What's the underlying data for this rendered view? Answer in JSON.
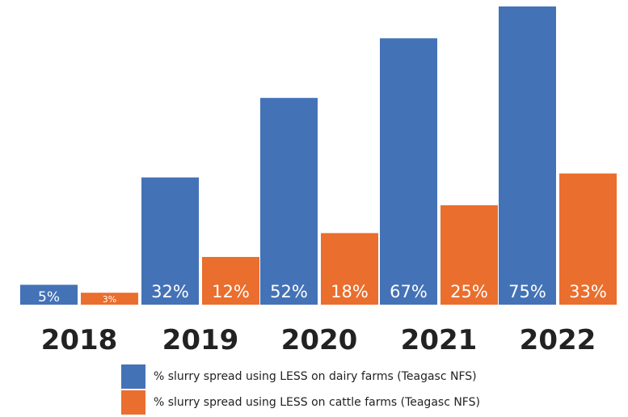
{
  "chart_data": {
    "type": "bar",
    "categories": [
      "2018",
      "2019",
      "2020",
      "2021",
      "2022"
    ],
    "series": [
      {
        "name": "% slurry spread using LESS on dairy farms (Teagasc NFS)",
        "values": [
          5,
          32,
          52,
          67,
          75
        ],
        "labels": [
          "5%",
          "32%",
          "52%",
          "67%",
          "75%"
        ]
      },
      {
        "name": "% slurry spread using LESS on cattle farms (Teagasc NFS)",
        "values": [
          3,
          12,
          18,
          25,
          33
        ],
        "labels": [
          "3%",
          "12%",
          "18%",
          "25%",
          "33%"
        ]
      }
    ],
    "ylim": [
      0,
      75
    ],
    "grid": false,
    "legend_position": "bottom"
  },
  "colors": {
    "dairy": "#4472b6",
    "cattle": "#ea6e2d",
    "data_label": "#ffffff",
    "category_label": "#222222"
  }
}
